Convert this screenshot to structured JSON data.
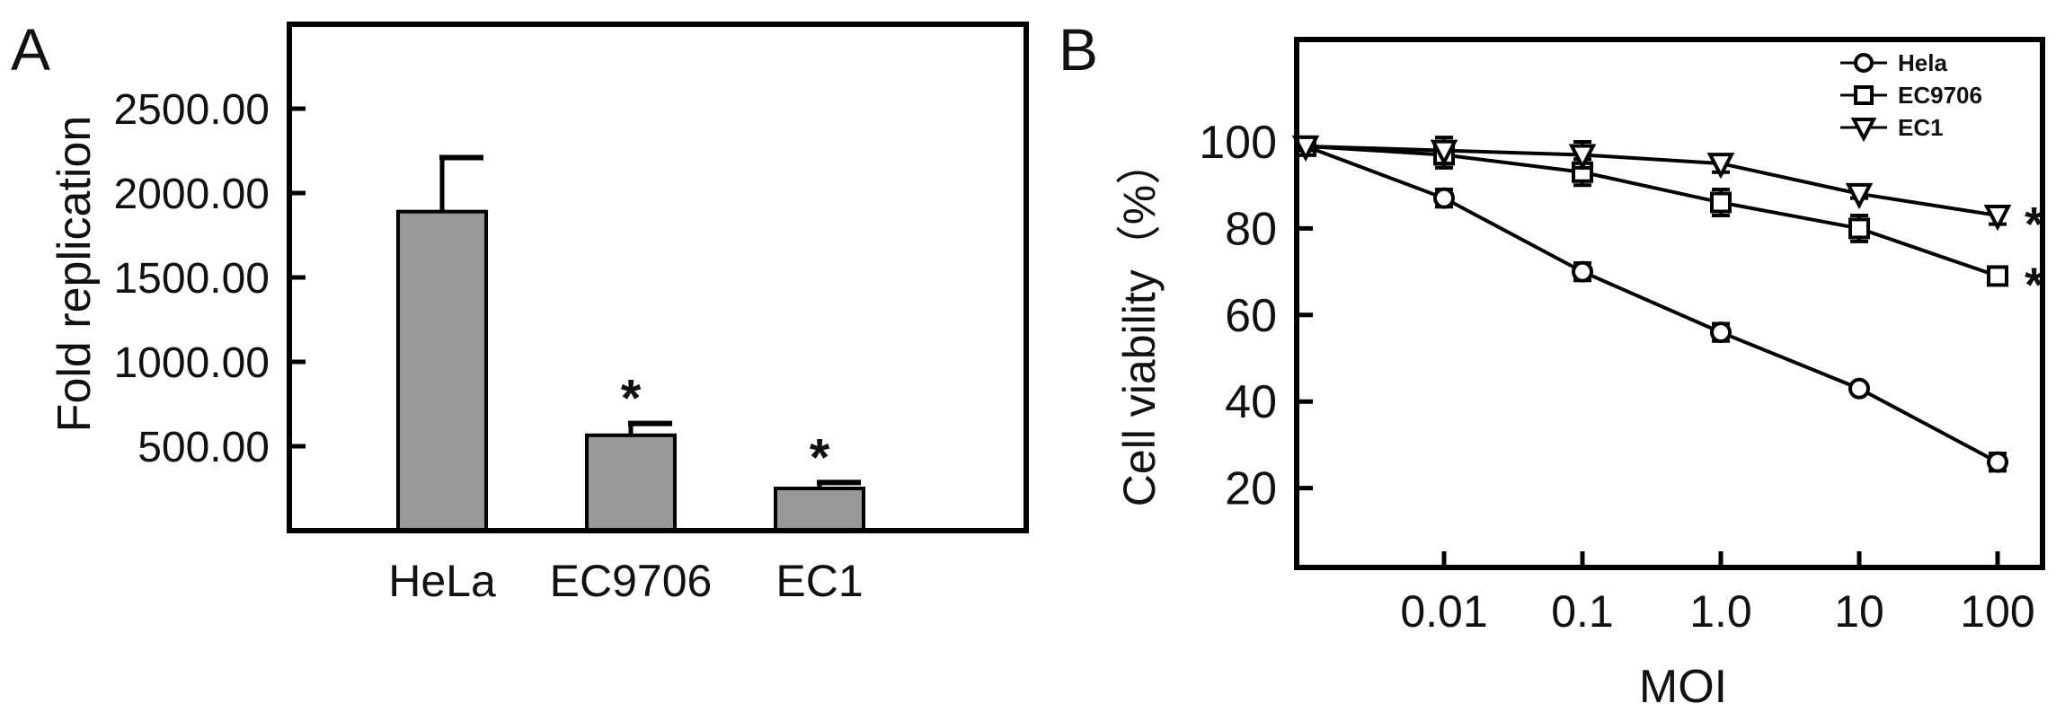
{
  "chart_data": [
    {
      "panel_label": "A",
      "type": "bar",
      "ylabel": "Fold replication",
      "categories": [
        "HeLa",
        "EC9706",
        "EC1"
      ],
      "values": [
        1890,
        565,
        250
      ],
      "errors": [
        320,
        70,
        35
      ],
      "significance": [
        "",
        "*",
        "*"
      ],
      "yticks": [
        "500.00",
        "1000.00",
        "1500.00",
        "2000.00",
        "2500.00"
      ],
      "ytick_values": [
        500,
        1000,
        1500,
        2000,
        2500
      ],
      "ylim": [
        0,
        3000
      ],
      "bar_color": "#999999"
    },
    {
      "panel_label": "B",
      "type": "line",
      "xlabel": "MOI",
      "ylabel": "Cell viability（%）",
      "x_scale": "log",
      "xticks": [
        "0.01",
        "0.1",
        "1.0",
        "10",
        "100"
      ],
      "ytick_values": [
        20,
        40,
        60,
        80,
        100
      ],
      "yticks": [
        "20",
        "40",
        "60",
        "80",
        "100"
      ],
      "ylim": [
        0,
        118
      ],
      "legend_position": "top-right",
      "series": [
        {
          "name": "Hela",
          "marker": "circle",
          "points": [
            [
              0.001,
              99
            ],
            [
              0.01,
              87
            ],
            [
              0.1,
              70
            ],
            [
              1,
              56
            ],
            [
              10,
              43
            ],
            [
              100,
              26
            ]
          ],
          "errors": [
            1,
            2,
            2,
            2,
            1,
            2
          ],
          "significance": ""
        },
        {
          "name": "EC9706",
          "marker": "square",
          "points": [
            [
              0.001,
              99
            ],
            [
              0.01,
              97
            ],
            [
              0.1,
              93
            ],
            [
              1,
              86
            ],
            [
              10,
              80
            ],
            [
              100,
              69
            ]
          ],
          "errors": [
            1,
            3,
            3,
            3,
            3,
            2
          ],
          "significance": "*"
        },
        {
          "name": "EC1",
          "marker": "triangle-down",
          "points": [
            [
              0.001,
              99
            ],
            [
              0.01,
              98
            ],
            [
              0.1,
              97
            ],
            [
              1,
              95
            ],
            [
              10,
              88
            ],
            [
              100,
              83
            ]
          ],
          "errors": [
            1,
            3,
            3,
            2,
            1,
            2
          ],
          "significance": "*"
        }
      ]
    }
  ]
}
